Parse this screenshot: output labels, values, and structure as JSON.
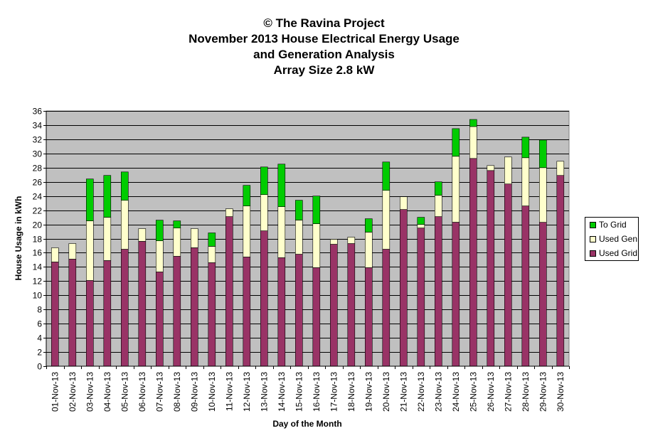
{
  "title_lines": [
    "© The Ravina Project",
    "November 2013 House Electrical Energy Usage",
    "and Generation Analysis",
    "Array Size 2.8 kW"
  ],
  "colors": {
    "plot_bg": "#c0c0c0",
    "grid": "#000000",
    "used_grid": "#993366",
    "used_gen": "#ffffcc",
    "to_grid": "#00cc00"
  },
  "chart_data": {
    "type": "bar",
    "stacked": true,
    "xlabel": "Day of the Month",
    "ylabel": "House Usage in kWh",
    "ylim": [
      0,
      36
    ],
    "ytick_step": 2,
    "grid": true,
    "legend_position": "right",
    "categories": [
      "01-Nov-13",
      "02-Nov-13",
      "03-Nov-13",
      "04-Nov-13",
      "05-Nov-13",
      "06-Nov-13",
      "07-Nov-13",
      "08-Nov-13",
      "09-Nov-13",
      "10-Nov-13",
      "11-Nov-13",
      "12-Nov-13",
      "13-Nov-13",
      "14-Nov-13",
      "15-Nov-13",
      "16-Nov-13",
      "17-Nov-13",
      "18-Nov-13",
      "19-Nov-13",
      "20-Nov-13",
      "21-Nov-13",
      "22-Nov-13",
      "23-Nov-13",
      "24-Nov-13",
      "25-Nov-13",
      "26-Nov-13",
      "27-Nov-13",
      "28-Nov-13",
      "29-Nov-13",
      "30-Nov-13"
    ],
    "series": [
      {
        "name": "Used Grid",
        "values": [
          14.7,
          15.1,
          12.1,
          14.9,
          16.5,
          17.6,
          13.3,
          15.5,
          16.7,
          14.6,
          21.1,
          15.4,
          19.1,
          15.3,
          15.8,
          13.9,
          17.2,
          17.3,
          13.9,
          16.5,
          22.1,
          19.5,
          21.1,
          20.3,
          29.3,
          27.6,
          25.7,
          22.6,
          20.3,
          26.9
        ]
      },
      {
        "name": "Used Gen",
        "values": [
          2.0,
          2.2,
          8.4,
          6.1,
          6.9,
          1.8,
          4.4,
          4.0,
          2.7,
          2.3,
          1.1,
          7.2,
          5.1,
          7.2,
          4.8,
          6.2,
          0.7,
          0.9,
          5.0,
          8.3,
          1.8,
          0.5,
          3.0,
          9.3,
          4.5,
          0.7,
          3.8,
          6.8,
          7.7,
          2.0
        ]
      },
      {
        "name": "To Grid",
        "values": [
          0,
          0,
          5.9,
          5.9,
          4.0,
          0,
          2.9,
          1.0,
          0,
          1.9,
          0,
          2.9,
          3.9,
          6.0,
          2.8,
          3.9,
          0,
          0,
          1.9,
          4.0,
          0,
          1.0,
          1.9,
          3.9,
          1.0,
          0,
          0,
          2.9,
          3.9,
          0
        ]
      }
    ]
  },
  "legend": [
    {
      "label": "To Grid",
      "color_key": "to_grid"
    },
    {
      "label": "Used Gen",
      "color_key": "used_gen"
    },
    {
      "label": "Used Grid",
      "color_key": "used_grid"
    }
  ]
}
